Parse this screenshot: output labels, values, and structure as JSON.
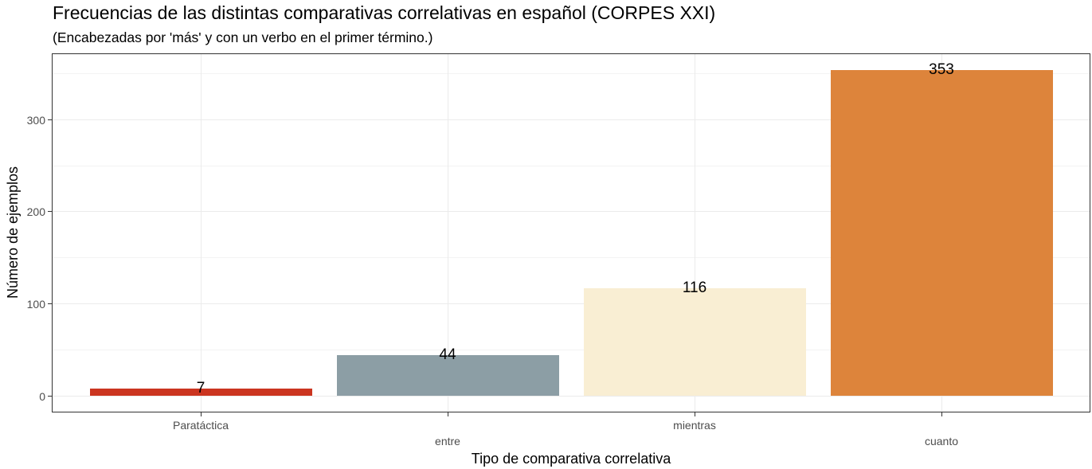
{
  "chart_data": {
    "type": "bar",
    "title": "Frecuencias de las distintas comparativas correlativas en español (CORPES XXI)",
    "subtitle": "(Encabezadas por 'más' y con un verbo en el primer término.)",
    "xlabel": "Tipo de comparativa correlativa",
    "ylabel": "Número de ejemplos",
    "categories": [
      "Paratáctica",
      "entre",
      "mientras",
      "cuanto"
    ],
    "values": [
      7,
      44,
      116,
      353
    ],
    "colors": [
      "#cb3520",
      "#8c9ea5",
      "#f9eed3",
      "#dd843b"
    ],
    "data_labels": [
      "7",
      "44",
      "116",
      "353"
    ],
    "yticks": [
      0,
      100,
      200,
      300
    ],
    "ytick_labels": [
      "0",
      "100",
      "200",
      "300"
    ],
    "ylim": [
      -17.65,
      370.65
    ],
    "grid": true,
    "legend": "none",
    "x_label_dodge": true
  }
}
